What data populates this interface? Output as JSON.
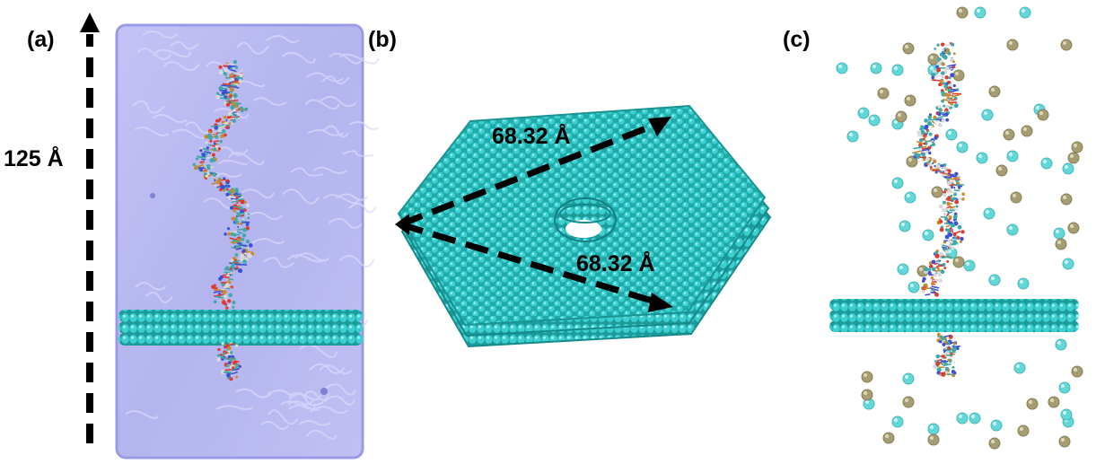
{
  "panel_labels": {
    "a": "(a)",
    "b": "(b)",
    "c": "(c)"
  },
  "box_height_label": "125 Å",
  "sheet_dims": {
    "upper": "68.32 Å",
    "lower": "68.32 Å"
  },
  "colors": {
    "water_box": "#b9b9f2",
    "water_box_edge": "#8f90e0",
    "graphene": "#2fc6c6",
    "graphene_dark": "#1f9c9c",
    "ion_cyan": "#63d7d7",
    "ion_olive": "#a69e72",
    "dna_carbon": "#3fa8a8",
    "dna_oxygen": "#e0392e",
    "dna_nitrogen": "#3c4fd6",
    "dna_phosphorus": "#c78a2e"
  },
  "icons": {
    "vertical_arrow": "dashed-up-arrow-icon",
    "dimension_arrows": "dashed-arrow-icon"
  }
}
